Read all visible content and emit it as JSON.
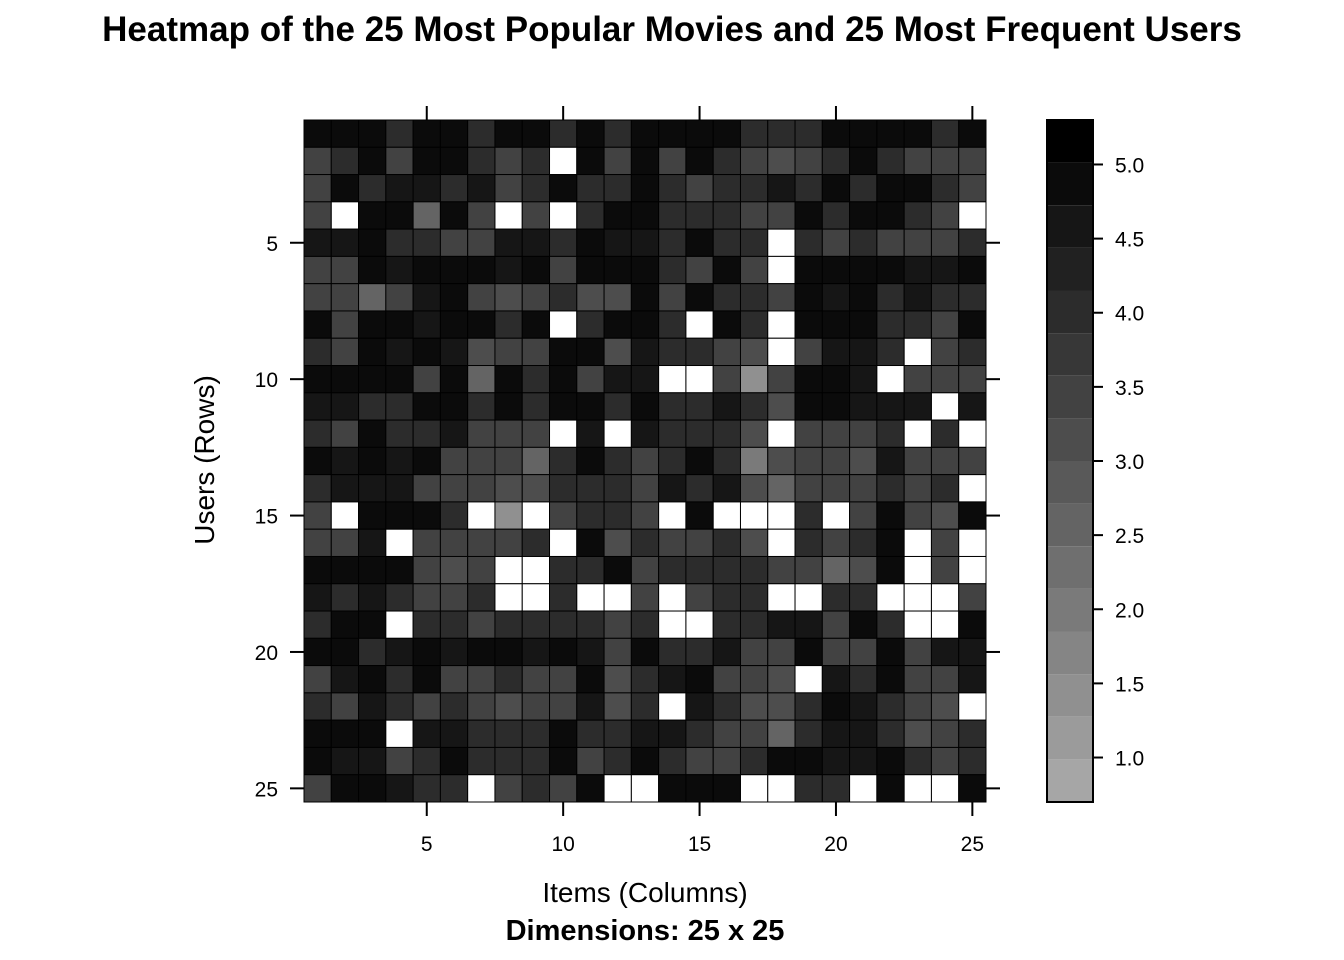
{
  "chart_data": {
    "type": "heatmap",
    "title": "Heatmap of the 25 Most Popular Movies and 25 Most Frequent Users",
    "xlabel": "Items (Columns)",
    "ylabel": "Users (Rows)",
    "subtitle": "Dimensions: 25 x 25",
    "x_ticks": [
      5,
      10,
      15,
      20,
      25
    ],
    "y_ticks": [
      5,
      10,
      15,
      20,
      25
    ],
    "colorbar_ticks": [
      1.0,
      1.5,
      2.0,
      2.5,
      3.0,
      3.5,
      4.0,
      4.5,
      5.0
    ],
    "colorbar_range": [
      0.7,
      5.3
    ],
    "color_low": "#a6a6a6",
    "color_high": "#000000",
    "missing_color": "#ffffff",
    "rows": 25,
    "cols": 25,
    "values": [
      [
        5,
        5,
        5,
        4,
        5,
        5,
        4,
        5,
        5,
        4,
        5,
        4,
        5,
        5,
        5,
        5,
        4,
        4,
        4,
        5,
        5,
        5,
        5,
        4,
        5
      ],
      [
        3.5,
        4,
        5,
        3.5,
        5,
        5,
        4,
        3.5,
        4,
        null,
        5,
        3.5,
        5,
        3.5,
        5,
        4,
        3.5,
        3,
        3.5,
        4,
        5,
        4,
        3.5,
        3.5,
        3.5
      ],
      [
        3.5,
        5,
        4,
        4.5,
        4.5,
        4,
        4.5,
        3.5,
        4,
        5,
        4,
        4,
        5,
        4,
        3.5,
        4,
        4,
        4.5,
        4,
        5,
        4,
        5,
        5,
        4,
        3.5
      ],
      [
        3.5,
        null,
        5,
        5,
        2.5,
        5,
        3.5,
        null,
        3.5,
        null,
        4,
        5,
        5,
        4,
        4,
        4,
        3.5,
        3.5,
        5,
        4,
        5,
        5,
        4,
        3.5,
        null
      ],
      [
        4.5,
        4.5,
        5,
        4,
        4,
        3.5,
        3.5,
        4.5,
        4.5,
        4,
        5,
        4.5,
        4.5,
        4,
        5,
        4,
        4,
        null,
        4,
        3.5,
        4,
        3.5,
        3.5,
        3.5,
        4
      ],
      [
        3.5,
        3.5,
        5,
        4.5,
        5,
        5,
        5,
        4.5,
        5,
        3.5,
        5,
        5,
        5,
        4,
        3.5,
        5,
        3.5,
        null,
        5,
        5,
        5,
        5,
        4.5,
        4.5,
        5
      ],
      [
        3.5,
        3.5,
        2.5,
        3.5,
        4.5,
        5,
        3.5,
        3,
        3.5,
        4,
        3,
        3,
        5,
        3.5,
        5,
        4,
        4,
        3.5,
        5,
        4.5,
        5,
        4,
        4.5,
        4,
        4
      ],
      [
        5,
        3.5,
        5,
        5,
        4.5,
        5,
        5,
        4,
        5,
        null,
        4,
        5,
        5,
        4,
        null,
        5,
        4,
        null,
        5,
        5,
        5,
        4,
        4,
        3.5,
        5
      ],
      [
        4,
        3.5,
        5,
        4.5,
        5,
        4.5,
        3,
        3.5,
        3.5,
        5,
        5,
        3,
        4.5,
        4,
        4,
        3.5,
        3,
        null,
        3.5,
        4.5,
        4.5,
        4,
        null,
        3.5,
        4
      ],
      [
        5,
        5,
        5,
        5,
        3.5,
        5,
        2.5,
        5,
        4,
        5,
        3.5,
        4.5,
        4.5,
        null,
        null,
        3.5,
        1.5,
        3.5,
        5,
        5,
        4.5,
        null,
        3.5,
        3.5,
        3.5
      ],
      [
        4.5,
        4.5,
        4,
        4,
        5,
        5,
        4,
        5,
        4,
        5,
        5,
        4,
        5,
        4,
        4,
        4.5,
        4,
        3,
        5,
        5,
        4.5,
        4.5,
        4.5,
        null,
        4.5
      ],
      [
        4,
        3.5,
        5,
        4,
        4,
        4.5,
        3.5,
        3.5,
        3.5,
        null,
        4.5,
        null,
        4.5,
        4,
        4,
        4,
        3,
        null,
        3.5,
        3.5,
        3.5,
        4,
        null,
        4,
        null
      ],
      [
        5,
        4.5,
        5,
        4.5,
        5,
        3.5,
        3.5,
        3.5,
        2.5,
        4,
        5,
        4,
        3.5,
        4,
        5,
        4,
        2,
        3,
        3.5,
        3.5,
        3,
        4.5,
        3.5,
        3.5,
        3.5
      ],
      [
        4,
        4.5,
        4.5,
        4.5,
        3.5,
        3.5,
        3.5,
        3,
        3,
        4,
        4,
        4,
        3.5,
        4.5,
        4,
        4.5,
        3,
        2.5,
        3.5,
        3.5,
        3.5,
        4,
        3.5,
        4,
        null
      ],
      [
        3.5,
        null,
        5,
        5,
        5,
        4,
        null,
        1.5,
        null,
        3.5,
        4,
        4,
        3.5,
        null,
        5,
        null,
        null,
        null,
        4,
        null,
        3.5,
        5,
        3.5,
        3,
        5
      ],
      [
        3.5,
        3.5,
        4.5,
        null,
        3.5,
        3.5,
        3.5,
        3.5,
        4,
        null,
        5,
        3,
        4,
        3.5,
        3.5,
        4,
        3,
        null,
        4,
        3.5,
        4,
        5,
        null,
        3.5,
        null
      ],
      [
        5,
        5,
        5,
        5,
        3.5,
        3,
        3.5,
        null,
        null,
        4,
        4,
        5,
        3.5,
        4,
        4,
        4,
        4,
        3.5,
        3.5,
        2.5,
        3,
        5,
        null,
        3.5,
        null
      ],
      [
        4.5,
        4,
        4.5,
        4,
        3.5,
        3.5,
        4,
        null,
        null,
        4,
        null,
        null,
        3.5,
        null,
        3.5,
        4,
        4,
        null,
        null,
        4,
        4,
        null,
        null,
        null,
        3.5
      ],
      [
        4,
        5,
        5,
        null,
        4,
        4,
        3.5,
        4,
        4,
        4,
        4,
        3.5,
        4,
        null,
        null,
        4,
        4,
        4.5,
        4.5,
        3.5,
        5,
        4,
        null,
        null,
        5
      ],
      [
        5,
        5,
        4,
        4.5,
        5,
        4.5,
        5,
        5,
        4.5,
        5,
        4.5,
        3.5,
        5,
        4,
        4,
        4.5,
        3.5,
        3.5,
        5,
        3.5,
        3.5,
        5,
        3.5,
        4.5,
        4.5
      ],
      [
        3.5,
        4.5,
        5,
        4,
        5,
        3.5,
        3.5,
        4,
        3.5,
        3.5,
        5,
        3,
        4,
        4.5,
        5,
        3.5,
        3.5,
        3,
        null,
        4.5,
        4,
        5,
        3.5,
        3.5,
        4.5
      ],
      [
        4,
        3.5,
        4.5,
        4,
        3.5,
        4,
        3.5,
        3,
        3.5,
        3.5,
        4.5,
        3,
        4,
        null,
        4.5,
        4,
        3,
        3,
        4,
        5,
        4.5,
        4,
        3.5,
        3,
        null
      ],
      [
        5,
        5,
        5,
        null,
        4.5,
        4.5,
        4,
        4,
        4,
        5,
        4,
        4,
        4.5,
        4.5,
        4,
        3.5,
        3.5,
        2.5,
        4,
        4.5,
        4.5,
        4,
        3,
        3.5,
        4
      ],
      [
        5,
        4.5,
        4.5,
        3.5,
        4,
        5,
        4,
        4,
        4,
        5,
        3.5,
        4,
        5,
        4,
        3.5,
        3.5,
        4,
        5,
        5,
        4.5,
        4.5,
        5,
        4,
        3.5,
        4
      ],
      [
        3.5,
        5,
        5,
        4.5,
        4,
        4,
        null,
        3.5,
        4,
        3.5,
        5,
        null,
        null,
        5,
        5,
        5,
        null,
        null,
        4,
        4,
        null,
        5,
        null,
        null,
        5
      ]
    ]
  }
}
